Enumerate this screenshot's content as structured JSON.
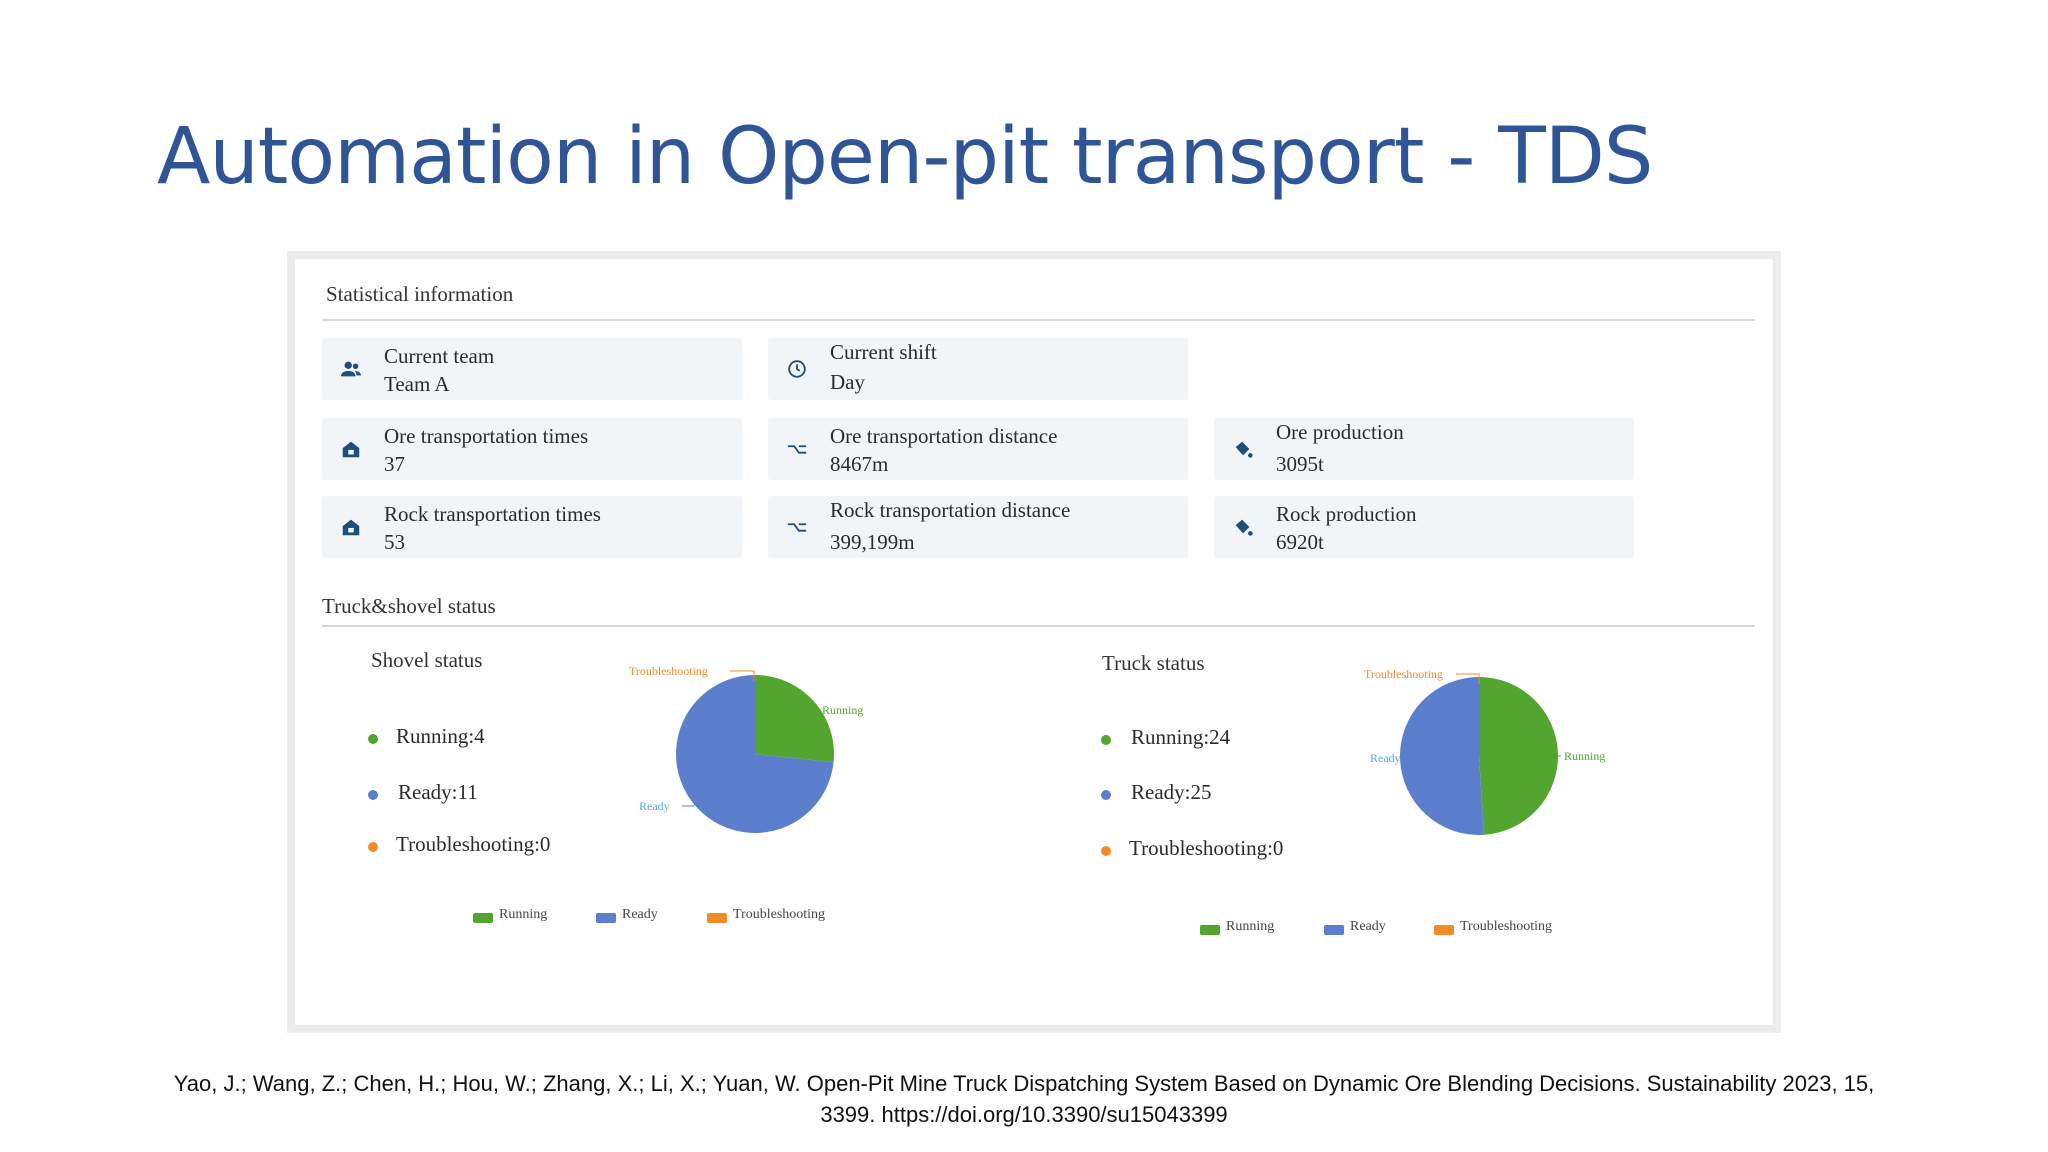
{
  "slide": {
    "title": "Automation in Open-pit transport - TDS",
    "citation_line1": "Yao, J.; Wang, Z.; Chen, H.; Hou, W.; Zhang, X.; Li, X.; Yuan, W. Open-Pit Mine Truck Dispatching System Based on Dynamic Ore Blending Decisions. Sustainability 2023, 15,",
    "citation_line2": "3399. https://doi.org/10.3390/su15043399"
  },
  "stats": {
    "section_title": "Statistical information",
    "current_team": {
      "label": "Current team",
      "value": "Team A",
      "icon": "team-icon"
    },
    "current_shift": {
      "label": "Current shift",
      "value": "Day",
      "icon": "clock-icon"
    },
    "ore_times": {
      "label": "Ore transportation times",
      "value": "37",
      "icon": "home-icon"
    },
    "ore_distance": {
      "label": "Ore transportation distance",
      "value": "8467m",
      "icon": "route-icon"
    },
    "ore_production": {
      "label": "Ore production",
      "value": "3095t",
      "icon": "bucket-icon"
    },
    "rock_times": {
      "label": "Rock transportation times",
      "value": "53",
      "icon": "home-icon"
    },
    "rock_distance": {
      "label": "Rock transportation distance",
      "value": "399,199m",
      "icon": "route-icon"
    },
    "rock_production": {
      "label": "Rock production",
      "value": "6920t",
      "icon": "bucket-icon"
    }
  },
  "status_section": {
    "title": "Truck&shovel status"
  },
  "colors": {
    "running": "#52a52e",
    "ready": "#5b7fcc",
    "troubleshooting": "#f28c28",
    "ready_label": "#5aa8d8",
    "trouble_label": "#f28c28",
    "running_label": "#52a52e",
    "title_blue": "#2f5597",
    "icon_blue": "#1f4e79"
  },
  "shovel": {
    "title": "Shovel status",
    "items": [
      {
        "text": "Running:4"
      },
      {
        "text": "Ready:11"
      },
      {
        "text": "Troubleshooting:0"
      }
    ],
    "slice_labels": {
      "troubleshooting": "Troubleshooting",
      "running": "Running",
      "ready": "Ready"
    },
    "legend": [
      "Running",
      "Ready",
      "Troubleshooting"
    ]
  },
  "truck": {
    "title": "Truck status",
    "items": [
      {
        "text": "Running:24"
      },
      {
        "text": "Ready:25"
      },
      {
        "text": "Troubleshooting:0"
      }
    ],
    "slice_labels": {
      "troubleshooting": "Troubleshooting",
      "running": "Running",
      "ready": "Ready"
    },
    "legend": [
      "Running",
      "Ready",
      "Troubleshooting"
    ]
  },
  "chart_data": [
    {
      "type": "pie",
      "title": "Shovel status",
      "categories": [
        "Running",
        "Ready",
        "Troubleshooting"
      ],
      "values": [
        4,
        11,
        0
      ],
      "colors": [
        "#52a52e",
        "#5b7fcc",
        "#f28c28"
      ],
      "legend": "bottom"
    },
    {
      "type": "pie",
      "title": "Truck status",
      "categories": [
        "Running",
        "Ready",
        "Troubleshooting"
      ],
      "values": [
        24,
        25,
        0
      ],
      "colors": [
        "#52a52e",
        "#5b7fcc",
        "#f28c28"
      ],
      "legend": "bottom"
    }
  ]
}
